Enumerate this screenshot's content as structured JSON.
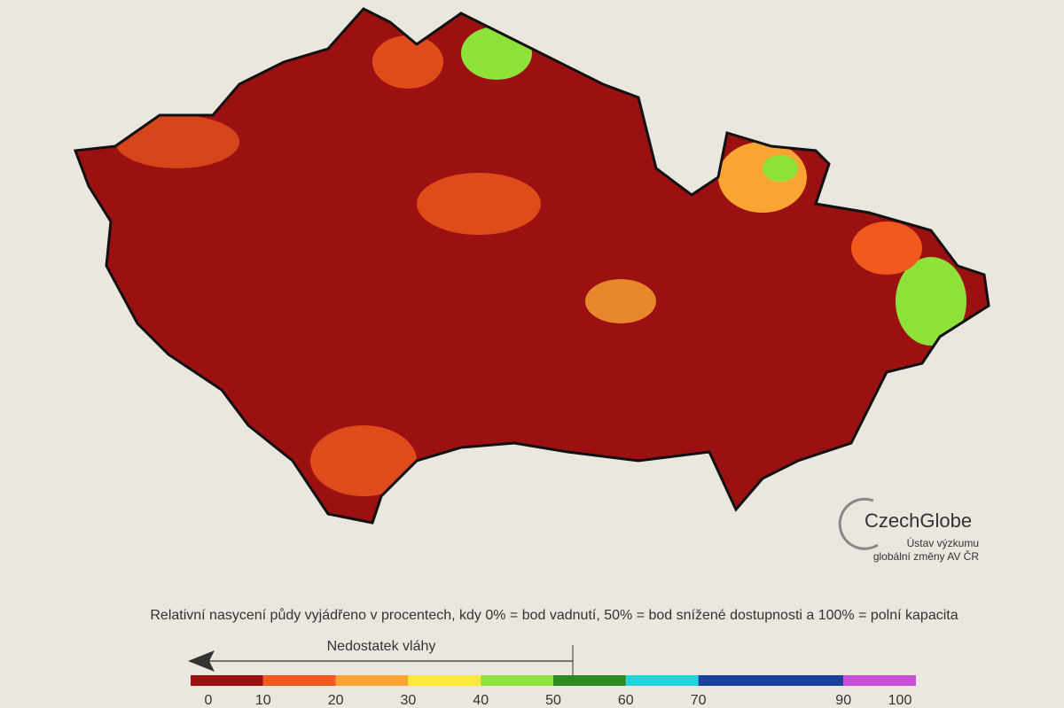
{
  "logo": {
    "name": "CzechGlobe",
    "subtitle_lines": [
      "Ústav výzkumu",
      "globální změny AV ČR"
    ]
  },
  "legend": {
    "caption": "Relativní nasycení půdy vyjádřeno v procentech, kdy 0% = bod vadnutí, 50% = bod snížené dostupnosti a 100% = polní kapacita",
    "arrow_label": "Nedostatek vláhy",
    "segments": [
      {
        "from": 0,
        "to": 10,
        "color": "#9b1111"
      },
      {
        "from": 10,
        "to": 20,
        "color": "#f05a1e"
      },
      {
        "from": 20,
        "to": 30,
        "color": "#f8a531"
      },
      {
        "from": 30,
        "to": 40,
        "color": "#fde93a"
      },
      {
        "from": 40,
        "to": 50,
        "color": "#8ee33b"
      },
      {
        "from": 50,
        "to": 60,
        "color": "#2d8a23"
      },
      {
        "from": 60,
        "to": 70,
        "color": "#20d6d8"
      },
      {
        "from": 70,
        "to": 90,
        "color": "#1c3f9a"
      },
      {
        "from": 90,
        "to": 100,
        "color": "#c84fd6"
      }
    ],
    "ticks": [
      0,
      10,
      20,
      30,
      40,
      50,
      60,
      70,
      90,
      100
    ]
  }
}
